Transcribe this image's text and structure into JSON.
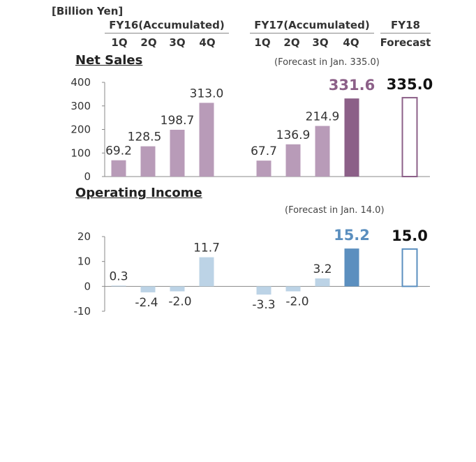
{
  "unit_label": "[Billion Yen]",
  "headers": {
    "fy16": "FY16(Accumulated)",
    "fy17": "FY17(Accumulated)",
    "fy18": "FY18",
    "fy18_sub": "Forecast",
    "quarters": [
      "1Q",
      "2Q",
      "3Q",
      "4Q"
    ]
  },
  "colors": {
    "sales_light": "#b89bb8",
    "sales_dark": "#8c6088",
    "sales_label_dark": "#8c6088",
    "income_light": "#bcd3e6",
    "income_dark": "#5b8fbf",
    "income_label_dark": "#5b8fbf",
    "axis": "#888888"
  },
  "chart_data": [
    {
      "type": "bar",
      "title": "Net Sales",
      "note": "(Forecast in Jan. 335.0)",
      "ylim": [
        0,
        400
      ],
      "yticks": [
        "0",
        "100",
        "200",
        "300",
        "400"
      ],
      "series": [
        {
          "name": "FY16(Accumulated)",
          "categories": [
            "1Q",
            "2Q",
            "3Q",
            "4Q"
          ],
          "values": [
            69.2,
            128.5,
            198.7,
            313.0
          ],
          "labels": [
            "69.2",
            "128.5",
            "198.7",
            "313.0"
          ]
        },
        {
          "name": "FY17(Accumulated)",
          "categories": [
            "1Q",
            "2Q",
            "3Q",
            "4Q"
          ],
          "values": [
            67.7,
            136.9,
            214.9,
            331.6
          ],
          "labels": [
            "67.7",
            "136.9",
            "214.9",
            "331.6"
          ]
        },
        {
          "name": "FY18 Forecast",
          "categories": [
            "Forecast"
          ],
          "values": [
            335.0
          ],
          "labels": [
            "335.0"
          ]
        }
      ]
    },
    {
      "type": "bar",
      "title": "Operating Income",
      "note": "(Forecast in Jan. 14.0)",
      "ylim": [
        -10,
        20
      ],
      "yticks": [
        "-10",
        "0",
        "10",
        "20"
      ],
      "series": [
        {
          "name": "FY16(Accumulated)",
          "categories": [
            "1Q",
            "2Q",
            "3Q",
            "4Q"
          ],
          "values": [
            0.3,
            -2.4,
            -2.0,
            11.7
          ],
          "labels": [
            "0.3",
            "-2.4",
            "-2.0",
            "11.7"
          ]
        },
        {
          "name": "FY17(Accumulated)",
          "categories": [
            "1Q",
            "2Q",
            "3Q",
            "4Q"
          ],
          "values": [
            -3.3,
            -2.0,
            3.2,
            15.2
          ],
          "labels": [
            "-3.3",
            "-2.0",
            "3.2",
            "15.2"
          ]
        },
        {
          "name": "FY18 Forecast",
          "categories": [
            "Forecast"
          ],
          "values": [
            15.0
          ],
          "labels": [
            "15.0"
          ]
        }
      ]
    }
  ]
}
